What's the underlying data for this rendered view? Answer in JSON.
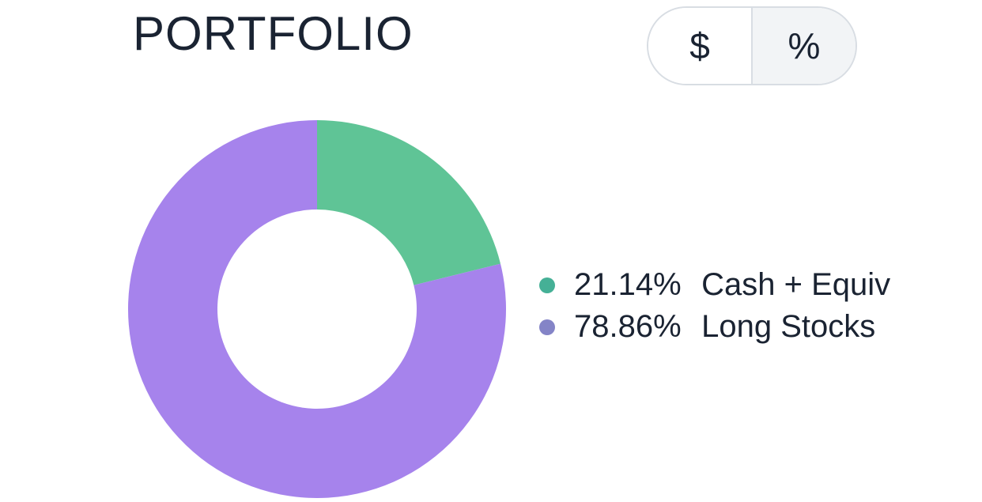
{
  "title": "PORTFOLIO",
  "toggle": {
    "dollar_label": "$",
    "percent_label": "%",
    "selected": "percent"
  },
  "chart": {
    "type": "donut",
    "outer_radius": 239,
    "inner_radius": 126,
    "background_color": "#ffffff",
    "start_angle_deg": 0,
    "series": [
      {
        "label": "Cash + Equiv",
        "value_pct": 21.14,
        "slice_color": "#5fc496",
        "legend_dot_color": "#45b096"
      },
      {
        "label": "Long Stocks",
        "value_pct": 78.86,
        "slice_color": "#a683ec",
        "legend_dot_color": "#8484c7"
      }
    ]
  },
  "legend": {
    "font_size": 40,
    "text_color": "#1a2332"
  },
  "title_style": {
    "font_size": 60,
    "color": "#1a2332"
  },
  "toggle_style": {
    "border_color": "#d8dde3",
    "selected_bg": "#f2f4f6",
    "unselected_bg": "#ffffff",
    "font_size": 46,
    "text_color": "#1a2332"
  }
}
